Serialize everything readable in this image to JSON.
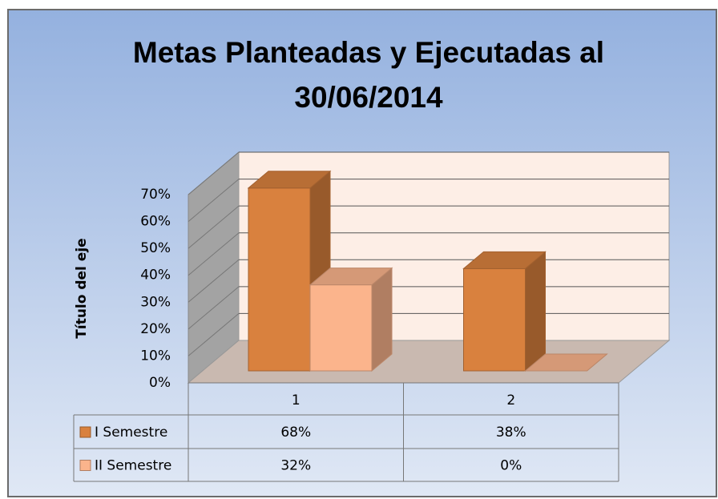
{
  "chart_data": {
    "type": "bar3d",
    "title": "Metas Planteadas y Ejecutadas al 30/06/2014",
    "y_axis_label": "Título del eje",
    "categories": [
      "1",
      "2"
    ],
    "series": [
      {
        "name": "I Semestre",
        "color": "#d9813e",
        "values": [
          68,
          38
        ],
        "value_labels": [
          "68%",
          "38%"
        ]
      },
      {
        "name": "II Semestre",
        "color": "#fbb48c",
        "values": [
          32,
          0
        ],
        "value_labels": [
          "32%",
          "0%"
        ]
      }
    ],
    "ylim": [
      0,
      70
    ],
    "yticks": [
      {
        "value": 0,
        "label": "0%"
      },
      {
        "value": 10,
        "label": "10%"
      },
      {
        "value": 20,
        "label": "20%"
      },
      {
        "value": 30,
        "label": "30%"
      },
      {
        "value": 40,
        "label": "40%"
      },
      {
        "value": 50,
        "label": "50%"
      },
      {
        "value": 60,
        "label": "60%"
      },
      {
        "value": 70,
        "label": "70%"
      }
    ],
    "grid": true,
    "data_table": true
  }
}
